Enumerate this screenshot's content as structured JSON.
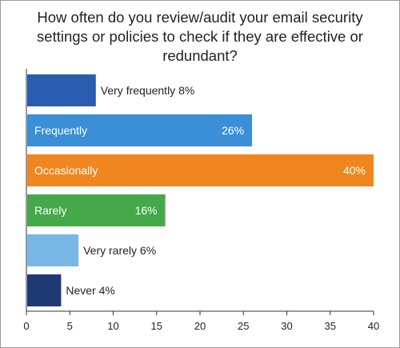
{
  "chart_data": {
    "type": "bar",
    "orientation": "horizontal",
    "title": "How often do you review/audit your email security settings or policies to check if they are effective or redundant?",
    "categories": [
      "Very frequently",
      "Frequently",
      "Occasionally",
      "Rarely",
      "Very rarely",
      "Never"
    ],
    "values": [
      8,
      26,
      40,
      16,
      6,
      4
    ],
    "data_labels": [
      "8%",
      "26%",
      "40%",
      "16%",
      "6%",
      "4%"
    ],
    "colors": [
      "#2a5db0",
      "#3a8fd6",
      "#f0861f",
      "#45a84a",
      "#78b7e6",
      "#1f3a74"
    ],
    "label_colors": [
      "#222222",
      "#ffffff",
      "#ffffff",
      "#ffffff",
      "#222222",
      "#222222"
    ],
    "label_inside": [
      false,
      true,
      true,
      true,
      false,
      false
    ],
    "xlim": [
      0,
      40
    ],
    "xticks": [
      0,
      5,
      10,
      15,
      20,
      25,
      30,
      35,
      40
    ],
    "grid": false
  }
}
